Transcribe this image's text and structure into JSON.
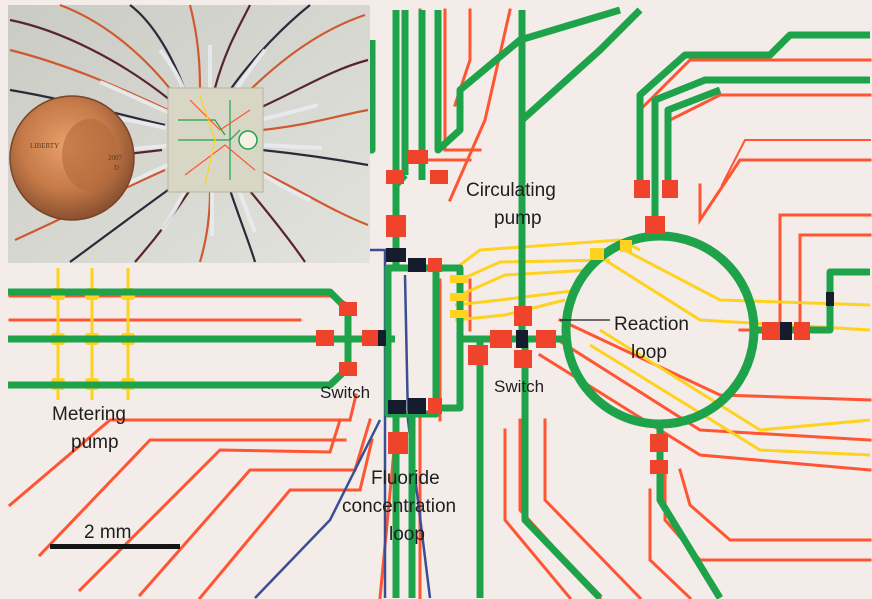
{
  "figure": {
    "labels": {
      "circulating_pump": [
        "Circulating",
        "pump"
      ],
      "reaction_loop": [
        "Reaction",
        "loop"
      ],
      "switch_left": "Switch",
      "switch_right": "Switch",
      "metering_pump": [
        "Metering",
        "pump"
      ],
      "fluoride_loop": [
        "Fluoride",
        "concentration",
        "loop"
      ],
      "scale_bar": "2 mm"
    },
    "inset": {
      "coin_text": [
        "LIBERTY",
        "2007",
        "D"
      ]
    },
    "colors": {
      "background": "#f3ece9",
      "flow_channel": "#1ea34a",
      "control_channel_red": "#ff5533",
      "control_channel_yellow": "#ffd21f",
      "control_channel_blue": "#3b4e93",
      "valve": "#f0432c",
      "valve_dark": "#141c2e",
      "label_text": "#1e1e1e"
    }
  }
}
